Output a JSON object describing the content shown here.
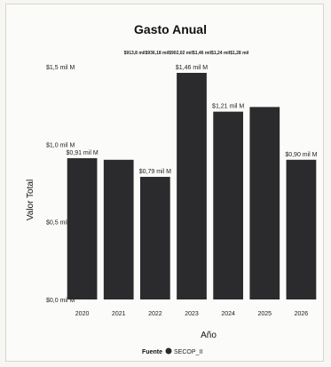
{
  "chart_data": {
    "type": "bar",
    "title": "Gasto Anual",
    "subtitle": "$913,8 mil$936,18 mil$902,02 mil$1,46 mil$1,24 mil$1,28 mil",
    "xlabel": "Año",
    "ylabel": "Valor Total",
    "categories": [
      "2020",
      "2021",
      "2022",
      "2023",
      "2024",
      "2025",
      "2026"
    ],
    "values": [
      0.91,
      0.9,
      0.79,
      1.46,
      1.21,
      1.24,
      0.9
    ],
    "data_labels": [
      "$0,91 mil M",
      "",
      "$0,79 mil M",
      "$1,46 mil M",
      "$1,21 mil M",
      "",
      "$0,90 mil M"
    ],
    "ylim": [
      0,
      1.5
    ],
    "yticks": [
      0,
      0.5,
      1.0,
      1.5
    ],
    "ytick_labels": [
      "$0,0 mil M",
      "$0,5 mil M",
      "$1,0 mil M",
      "$1,5 mil M"
    ],
    "bar_color": "#2b2b2e",
    "grid": false,
    "legend": {
      "title": "Fuente",
      "items": [
        {
          "name": "SECOP_II",
          "color": "#2b2b2e"
        }
      ],
      "placement": "bottom"
    }
  }
}
